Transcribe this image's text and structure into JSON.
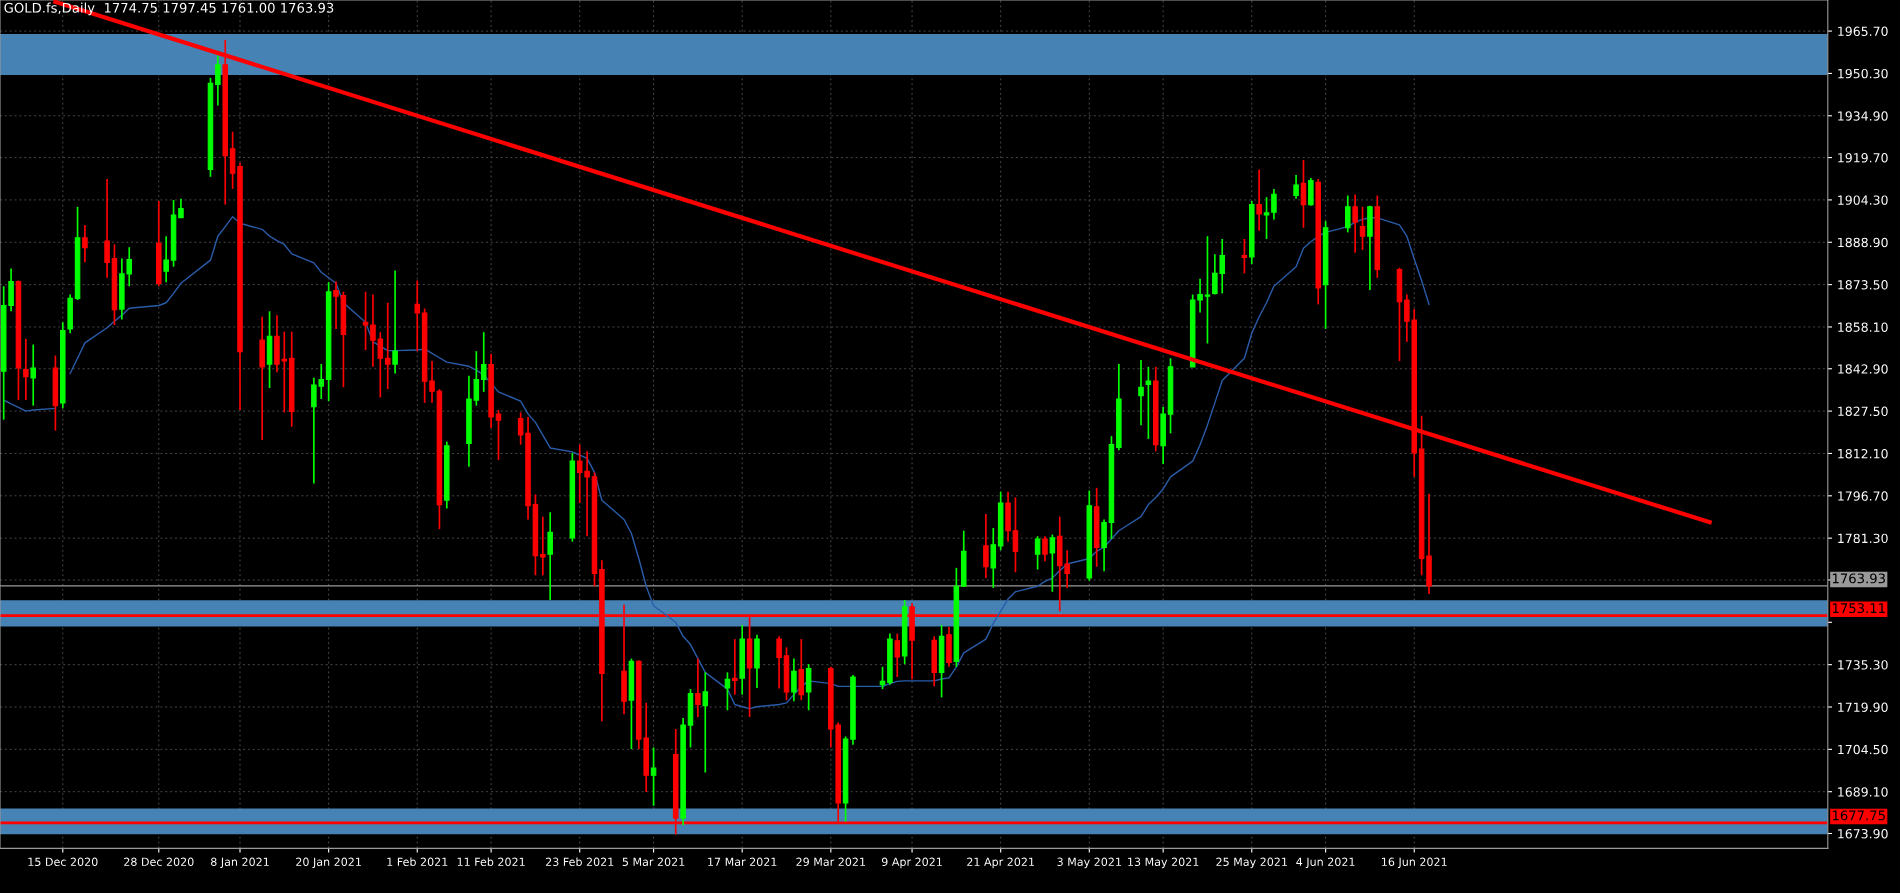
{
  "chart_data": {
    "type": "candlestick",
    "title": "GOLD.fs,Daily  1774.75 1797.45 1761.00 1763.93",
    "x": [
      "2020-12-07",
      "2020-12-08",
      "2020-12-09",
      "2020-12-10",
      "2020-12-11",
      "2020-12-14",
      "2020-12-15",
      "2020-12-16",
      "2020-12-17",
      "2020-12-18",
      "2020-12-21",
      "2020-12-22",
      "2020-12-23",
      "2020-12-24",
      "2020-12-28",
      "2020-12-29",
      "2020-12-30",
      "2020-12-31",
      "2021-01-04",
      "2021-01-05",
      "2021-01-06",
      "2021-01-07",
      "2021-01-08",
      "2021-01-11",
      "2021-01-12",
      "2021-01-13",
      "2021-01-14",
      "2021-01-15",
      "2021-01-18",
      "2021-01-19",
      "2021-01-20",
      "2021-01-21",
      "2021-01-22",
      "2021-01-25",
      "2021-01-26",
      "2021-01-27",
      "2021-01-28",
      "2021-01-29",
      "2021-02-01",
      "2021-02-02",
      "2021-02-03",
      "2021-02-04",
      "2021-02-05",
      "2021-02-08",
      "2021-02-09",
      "2021-02-10",
      "2021-02-11",
      "2021-02-12",
      "2021-02-15",
      "2021-02-16",
      "2021-02-17",
      "2021-02-18",
      "2021-02-19",
      "2021-02-22",
      "2021-02-23",
      "2021-02-24",
      "2021-02-25",
      "2021-02-26",
      "2021-03-01",
      "2021-03-02",
      "2021-03-03",
      "2021-03-04",
      "2021-03-05",
      "2021-03-08",
      "2021-03-09",
      "2021-03-10",
      "2021-03-11",
      "2021-03-12",
      "2021-03-15",
      "2021-03-16",
      "2021-03-17",
      "2021-03-18",
      "2021-03-19",
      "2021-03-22",
      "2021-03-23",
      "2021-03-24",
      "2021-03-25",
      "2021-03-26",
      "2021-03-29",
      "2021-03-30",
      "2021-03-31",
      "2021-04-01",
      "2021-04-05",
      "2021-04-06",
      "2021-04-07",
      "2021-04-08",
      "2021-04-09",
      "2021-04-12",
      "2021-04-13",
      "2021-04-14",
      "2021-04-15",
      "2021-04-16",
      "2021-04-19",
      "2021-04-20",
      "2021-04-21",
      "2021-04-22",
      "2021-04-23",
      "2021-04-26",
      "2021-04-27",
      "2021-04-28",
      "2021-04-29",
      "2021-04-30",
      "2021-05-03",
      "2021-05-04",
      "2021-05-05",
      "2021-05-06",
      "2021-05-07",
      "2021-05-10",
      "2021-05-11",
      "2021-05-12",
      "2021-05-13",
      "2021-05-14",
      "2021-05-17",
      "2021-05-18",
      "2021-05-19",
      "2021-05-20",
      "2021-05-21",
      "2021-05-24",
      "2021-05-25",
      "2021-05-26",
      "2021-05-27",
      "2021-05-28",
      "2021-05-31",
      "2021-06-01",
      "2021-06-02",
      "2021-06-03",
      "2021-06-04",
      "2021-06-07",
      "2021-06-08",
      "2021-06-09",
      "2021-06-10",
      "2021-06-11",
      "2021-06-14",
      "2021-06-15",
      "2021-06-16",
      "2021-06-17",
      "2021-06-18"
    ],
    "ohlc": [
      [
        1842.0,
        1872.9,
        1824.4,
        1865.9
      ],
      [
        1865.9,
        1879.4,
        1863.8,
        1874.6
      ],
      [
        1874.6,
        1875.0,
        1831.5,
        1843.2
      ],
      [
        1842.6,
        1853.7,
        1831.5,
        1840.0
      ],
      [
        1839.6,
        1851.7,
        1829.5,
        1843.2
      ],
      [
        1843.2,
        1847.7,
        1820.4,
        1829.5
      ],
      [
        1830.5,
        1859.8,
        1828.5,
        1856.8
      ],
      [
        1857.4,
        1869.9,
        1855.8,
        1868.5
      ],
      [
        1868.5,
        1901.8,
        1867.9,
        1890.5
      ],
      [
        1890.5,
        1895.2,
        1881.6,
        1886.9
      ],
      [
        1889.3,
        1911.9,
        1876.0,
        1881.6
      ],
      [
        1883.0,
        1888.1,
        1858.8,
        1864.4
      ],
      [
        1864.6,
        1883.0,
        1860.8,
        1877.4
      ],
      [
        1877.4,
        1887.1,
        1872.9,
        1882.6
      ],
      [
        1888.5,
        1903.9,
        1872.9,
        1873.9
      ],
      [
        1878.4,
        1891.1,
        1874.4,
        1882.4
      ],
      [
        1882.4,
        1904.3,
        1880.0,
        1898.8
      ],
      [
        1897.8,
        1904.7,
        1897.8,
        1901.2
      ],
      [
        1915.4,
        1948.7,
        1912.7,
        1946.7
      ],
      [
        1946.3,
        1956.8,
        1938.6,
        1953.4
      ],
      [
        1953.4,
        1962.5,
        1902.6,
        1920.4
      ],
      [
        1922.9,
        1929.1,
        1908.3,
        1914.0
      ],
      [
        1916.4,
        1917.8,
        1827.9,
        1849.1
      ],
      [
        1853.3,
        1861.8,
        1817.0,
        1843.6
      ],
      [
        1844.6,
        1863.8,
        1835.9,
        1854.7
      ],
      [
        1854.7,
        1862.4,
        1841.6,
        1844.6
      ],
      [
        1846.3,
        1856.4,
        1827.0,
        1845.7
      ],
      [
        1846.7,
        1856.4,
        1821.8,
        1827.4
      ],
      [
        1829.1,
        1839.6,
        1801.2,
        1837.0
      ],
      [
        1836.6,
        1844.6,
        1831.9,
        1839.0
      ],
      [
        1839.0,
        1874.4,
        1831.1,
        1870.9
      ],
      [
        1871.3,
        1874.6,
        1857.4,
        1869.3
      ],
      [
        1869.5,
        1870.9,
        1836.2,
        1855.4
      ],
      [
        1859.8,
        1870.9,
        1849.7,
        1858.8
      ],
      [
        1858.8,
        1869.9,
        1843.6,
        1853.3
      ],
      [
        1853.7,
        1856.2,
        1832.5,
        1846.7
      ],
      [
        1846.7,
        1866.9,
        1835.5,
        1844.6
      ],
      [
        1844.6,
        1878.6,
        1841.2,
        1849.3
      ],
      [
        1866.3,
        1875.0,
        1849.3,
        1863.2
      ],
      [
        1863.2,
        1864.8,
        1830.5,
        1838.4
      ],
      [
        1838.4,
        1845.7,
        1830.5,
        1834.7
      ],
      [
        1834.7,
        1835.5,
        1784.6,
        1793.5
      ],
      [
        1795.1,
        1816.4,
        1792.1,
        1814.9
      ],
      [
        1815.7,
        1840.4,
        1807.3,
        1831.9
      ],
      [
        1831.5,
        1849.3,
        1829.5,
        1839.0
      ],
      [
        1839.0,
        1856.2,
        1834.5,
        1844.4
      ],
      [
        1844.4,
        1848.3,
        1821.4,
        1825.4
      ],
      [
        1826.4,
        1827.9,
        1809.7,
        1824.2
      ],
      [
        1824.8,
        1827.0,
        1815.3,
        1818.8
      ],
      [
        1819.4,
        1825.4,
        1788.1,
        1793.1
      ],
      [
        1793.5,
        1797.2,
        1767.8,
        1774.9
      ],
      [
        1775.3,
        1789.1,
        1767.8,
        1774.5
      ],
      [
        1775.5,
        1790.7,
        1758.8,
        1783.4
      ],
      [
        1781.4,
        1812.3,
        1780.0,
        1809.3
      ],
      [
        1809.3,
        1815.3,
        1794.1,
        1805.2
      ],
      [
        1805.6,
        1812.9,
        1782.0,
        1803.6
      ],
      [
        1803.6,
        1805.2,
        1763.8,
        1768.5
      ],
      [
        1769.9,
        1773.3,
        1714.7,
        1732.1
      ],
      [
        1732.9,
        1757.1,
        1717.3,
        1722.0
      ],
      [
        1722.4,
        1737.5,
        1704.6,
        1736.5
      ],
      [
        1736.5,
        1736.9,
        1704.6,
        1708.2
      ],
      [
        1708.6,
        1721.4,
        1689.0,
        1695.1
      ],
      [
        1695.1,
        1705.2,
        1684.0,
        1697.7
      ],
      [
        1702.6,
        1711.9,
        1673.5,
        1679.5
      ],
      [
        1679.5,
        1715.9,
        1676.9,
        1713.3
      ],
      [
        1713.3,
        1726.4,
        1705.2,
        1724.8
      ],
      [
        1724.8,
        1737.5,
        1716.3,
        1720.8
      ],
      [
        1720.4,
        1732.5,
        1696.1,
        1725.4
      ],
      [
        1726.8,
        1732.5,
        1718.7,
        1730.0
      ],
      [
        1730.3,
        1744.6,
        1724.4,
        1729.6
      ],
      [
        1730.4,
        1749.7,
        1724.4,
        1744.6
      ],
      [
        1744.6,
        1753.1,
        1716.3,
        1734.1
      ],
      [
        1734.1,
        1746.2,
        1726.8,
        1744.6
      ],
      [
        1744.6,
        1745.6,
        1726.6,
        1737.9
      ],
      [
        1738.5,
        1741.6,
        1722.4,
        1725.4
      ],
      [
        1725.4,
        1737.5,
        1722.0,
        1732.9
      ],
      [
        1733.5,
        1744.6,
        1722.4,
        1724.4
      ],
      [
        1725.4,
        1735.5,
        1718.7,
        1733.9
      ],
      [
        1733.9,
        1734.5,
        1705.2,
        1711.9
      ],
      [
        1713.3,
        1714.3,
        1678.3,
        1685.0
      ],
      [
        1685.0,
        1709.2,
        1678.3,
        1708.2
      ],
      [
        1708.2,
        1731.5,
        1706.2,
        1730.8
      ],
      [
        1728.0,
        1734.5,
        1726.4,
        1729.2
      ],
      [
        1728.8,
        1746.6,
        1728.0,
        1744.6
      ],
      [
        1744.0,
        1746.6,
        1730.8,
        1738.1
      ],
      [
        1738.5,
        1758.8,
        1735.5,
        1756.3
      ],
      [
        1756.3,
        1757.7,
        1730.0,
        1744.2
      ],
      [
        1744.2,
        1745.6,
        1727.4,
        1732.5
      ],
      [
        1732.5,
        1749.7,
        1723.4,
        1745.6
      ],
      [
        1746.2,
        1749.0,
        1734.5,
        1736.1
      ],
      [
        1736.5,
        1770.5,
        1734.5,
        1763.8
      ],
      [
        1763.8,
        1784.0,
        1763.8,
        1776.5
      ],
      [
        1778.5,
        1790.1,
        1766.8,
        1770.9
      ],
      [
        1770.5,
        1785.0,
        1763.2,
        1778.9
      ],
      [
        1778.5,
        1798.2,
        1776.9,
        1794.1
      ],
      [
        1794.1,
        1798.2,
        1780.0,
        1784.0
      ],
      [
        1784.0,
        1796.1,
        1768.9,
        1776.5
      ],
      [
        1775.5,
        1782.0,
        1769.9,
        1781.0
      ],
      [
        1781.0,
        1782.0,
        1772.9,
        1775.5
      ],
      [
        1775.9,
        1782.6,
        1761.8,
        1781.4
      ],
      [
        1782.0,
        1789.1,
        1754.7,
        1771.3
      ],
      [
        1771.9,
        1776.9,
        1763.2,
        1768.5
      ],
      [
        1766.8,
        1798.6,
        1765.8,
        1793.1
      ],
      [
        1792.7,
        1799.6,
        1770.9,
        1777.9
      ],
      [
        1777.9,
        1788.1,
        1769.3,
        1787.0
      ],
      [
        1787.0,
        1818.4,
        1781.0,
        1815.3
      ],
      [
        1814.3,
        1844.6,
        1813.3,
        1831.9
      ],
      [
        1833.1,
        1846.1,
        1822.4,
        1836.2
      ],
      [
        1837.2,
        1843.6,
        1817.4,
        1838.4
      ],
      [
        1838.4,
        1843.6,
        1812.9,
        1815.3
      ],
      [
        1814.9,
        1829.1,
        1808.3,
        1826.4
      ],
      [
        1826.4,
        1846.7,
        1819.4,
        1843.6
      ],
      [
        1843.6,
        1869.9,
        1843.6,
        1867.9
      ],
      [
        1867.9,
        1875.6,
        1863.4,
        1869.9
      ],
      [
        1869.3,
        1891.1,
        1852.1,
        1869.7
      ],
      [
        1870.3,
        1884.5,
        1869.9,
        1877.6
      ],
      [
        1877.6,
        1890.1,
        1870.3,
        1884.1
      ],
      [
        1884.1,
        1890.1,
        1877.6,
        1883.4
      ],
      [
        1883.6,
        1903.9,
        1881.0,
        1902.6
      ],
      [
        1902.6,
        1915.4,
        1893.1,
        1899.2
      ],
      [
        1898.8,
        1905.3,
        1890.1,
        1899.6
      ],
      [
        1899.8,
        1908.3,
        1897.2,
        1906.3
      ],
      [
        1905.9,
        1913.4,
        1904.7,
        1909.7
      ],
      [
        1910.3,
        1918.8,
        1894.2,
        1902.6
      ],
      [
        1902.6,
        1912.3,
        1902.2,
        1911.3
      ],
      [
        1910.7,
        1911.9,
        1866.3,
        1872.3
      ],
      [
        1873.5,
        1896.6,
        1857.4,
        1894.2
      ],
      [
        1894.2,
        1905.9,
        1892.5,
        1901.8
      ],
      [
        1901.8,
        1906.3,
        1885.1,
        1896.2
      ],
      [
        1894.6,
        1901.8,
        1886.1,
        1891.1
      ],
      [
        1891.1,
        1902.2,
        1871.5,
        1901.8
      ],
      [
        1901.8,
        1905.9,
        1876.0,
        1879.0
      ],
      [
        1879.0,
        1879.6,
        1845.7,
        1867.3
      ],
      [
        1867.9,
        1869.9,
        1852.7,
        1860.2
      ],
      [
        1860.6,
        1864.6,
        1803.6,
        1812.3
      ],
      [
        1813.7,
        1825.8,
        1767.8,
        1773.9
      ],
      [
        1774.75,
        1797.45,
        1761.0,
        1763.93
      ]
    ],
    "colors": [
      "#00ff00",
      "#00ff00",
      "#ff0000",
      "#ff0000",
      "#00ff00",
      "#ff0000",
      "#00ff00",
      "#00ff00",
      "#00ff00",
      "#ff0000",
      "#ff0000",
      "#ff0000",
      "#00ff00",
      "#00ff00",
      "#ff0000",
      "#00ff00",
      "#00ff00",
      "#00ff00",
      "#00ff00",
      "#00ff00",
      "#ff0000",
      "#ff0000",
      "#ff0000",
      "#ff0000",
      "#00ff00",
      "#ff0000",
      "#ff0000",
      "#ff0000",
      "#00ff00",
      "#00ff00",
      "#00ff00",
      "#ff0000",
      "#ff0000",
      "#ff0000",
      "#ff0000",
      "#ff0000",
      "#ff0000",
      "#00ff00",
      "#ff0000",
      "#ff0000",
      "#ff0000",
      "#ff0000",
      "#00ff00",
      "#00ff00",
      "#00ff00",
      "#00ff00",
      "#ff0000",
      "#ff0000",
      "#ff0000",
      "#ff0000",
      "#ff0000",
      "#ff0000",
      "#00ff00",
      "#00ff00",
      "#ff0000",
      "#ff0000",
      "#ff0000",
      "#ff0000",
      "#ff0000",
      "#00ff00",
      "#ff0000",
      "#ff0000",
      "#00ff00",
      "#ff0000",
      "#00ff00",
      "#00ff00",
      "#ff0000",
      "#00ff00",
      "#00ff00",
      "#ff0000",
      "#00ff00",
      "#ff0000",
      "#00ff00",
      "#ff0000",
      "#ff0000",
      "#00ff00",
      "#ff0000",
      "#00ff00",
      "#ff0000",
      "#ff0000",
      "#00ff00",
      "#00ff00",
      "#00ff00",
      "#00ff00",
      "#ff0000",
      "#00ff00",
      "#ff0000",
      "#ff0000",
      "#00ff00",
      "#ff0000",
      "#00ff00",
      "#00ff00",
      "#ff0000",
      "#00ff00",
      "#00ff00",
      "#ff0000",
      "#ff0000",
      "#00ff00",
      "#ff0000",
      "#00ff00",
      "#ff0000",
      "#ff0000",
      "#00ff00",
      "#ff0000",
      "#00ff00",
      "#00ff00",
      "#00ff00",
      "#00ff00",
      "#00ff00",
      "#ff0000",
      "#00ff00",
      "#00ff00",
      "#00ff00",
      "#00ff00",
      "#00ff00",
      "#00ff00",
      "#00ff00",
      "#ff0000",
      "#00ff00",
      "#ff0000",
      "#00ff00",
      "#00ff00",
      "#00ff00",
      "#ff0000",
      "#00ff00",
      "#ff0000",
      "#00ff00",
      "#00ff00",
      "#ff0000",
      "#ff0000",
      "#00ff00",
      "#ff0000",
      "#ff0000",
      "#ff0000",
      "#ff0000",
      "#ff0000",
      "#ff0000"
    ],
    "series": [
      {
        "type": "line",
        "color": "#2a5caa",
        "values": [
          1831.5,
          1830.1,
          1828.9,
          1827.5,
          1827.9,
          1828.5,
          null,
          1841.2,
          1846.7,
          1852.3,
          1857.8,
          1860.2,
          1862.4,
          1864.9,
          1865.9,
          1866.9,
          1870.3,
          1874.0,
          1882.4,
          1891.1,
          1894.6,
          1898.2,
          1895.8,
          1893.6,
          1891.1,
          1889.5,
          1888.1,
          1884.7,
          1881.4,
          1878.0,
          1876.0,
          1874.0,
          1866.9,
          1859.8,
          1852.7,
          1851.1,
          1849.5,
          1849.5,
          1849.7,
          1850.1,
          1848.5,
          1846.9,
          1845.3,
          1843.8,
          1842.4,
          1840.6,
          1837.6,
          1834.5,
          1831.1,
          1826.5,
          1823.4,
          1818.8,
          1814.1,
          1812.7,
          1811.5,
          1810.3,
          1805.2,
          1795.1,
          1788.1,
          1783.0,
          1773.9,
          1763.8,
          1756.7,
          1750.7,
          1745.6,
          1742.6,
          1737.5,
          1732.5,
          1726.4,
          1720.8,
          1720.0,
          1719.3,
          1720.0,
          1720.8,
          1721.4,
          1724.4,
          1727.4,
          1729.4,
          1728.4,
          1727.4,
          1727.4,
          1727.4,
          1727.4,
          1728.4,
          1729.2,
          1729.4,
          1729.4,
          1729.4,
          1730.1,
          1730.5,
          1734.5,
          1739.6,
          1744.6,
          1750.3,
          1754.7,
          1759.2,
          1761.8,
          1763.8,
          1765.6,
          1766.8,
          1769.5,
          1771.9,
          1773.9,
          1776.5,
          1778.0,
          1781.0,
          1784.0,
          1789.1,
          1793.5,
          1796.1,
          1799.2,
          1803.6,
          1809.3,
          1815.3,
          1822.4,
          1830.5,
          1838.6,
          1846.7,
          1855.8,
          1861.8,
          1866.9,
          1872.9,
          1880.0,
          1886.7,
          1889.1,
          1891.1,
          1892.5,
          1894.6,
          1896.2,
          1897.2,
          1897.8,
          1897.8,
          1895.2,
          1891.1,
          1882.8,
          1875.0,
          1866.3
        ]
      },
      {
        "type": "line",
        "color": "#ff0000",
        "x": [
          "2020-12-14",
          "2021-07-26"
        ],
        "values": [
          1976.3,
          1787.1
        ]
      }
    ],
    "xlim": [
      "2020-12-06T12:00",
      "2021-08-11"
    ],
    "ylim": [
      1668.5,
      1977.0
    ],
    "xticks": [
      {
        "value": "2020-12-15",
        "label": "15 Dec 2020"
      },
      {
        "value": "2020-12-28",
        "label": "28 Dec 2020"
      },
      {
        "value": "2021-01-08",
        "label": "8 Jan 2021"
      },
      {
        "value": "2021-01-20",
        "label": "20 Jan 2021"
      },
      {
        "value": "2021-02-01",
        "label": "1 Feb 2021"
      },
      {
        "value": "2021-02-11",
        "label": "11 Feb 2021"
      },
      {
        "value": "2021-02-23",
        "label": "23 Feb 2021"
      },
      {
        "value": "2021-03-05",
        "label": "5 Mar 2021"
      },
      {
        "value": "2021-03-17",
        "label": "17 Mar 2021"
      },
      {
        "value": "2021-03-29",
        "label": "29 Mar 2021"
      },
      {
        "value": "2021-04-09",
        "label": "9 Apr 2021"
      },
      {
        "value": "2021-04-21",
        "label": "21 Apr 2021"
      },
      {
        "value": "2021-05-03",
        "label": "3 May 2021"
      },
      {
        "value": "2021-05-13",
        "label": "13 May 2021"
      },
      {
        "value": "2021-05-25",
        "label": "25 May 2021"
      },
      {
        "value": "2021-06-04",
        "label": "4 Jun 2021"
      },
      {
        "value": "2021-06-16",
        "label": "16 Jun 2021"
      }
    ],
    "yticks": [
      {
        "value": 1965.7,
        "label": "1965.70"
      },
      {
        "value": 1950.3,
        "label": "1950.30"
      },
      {
        "value": 1934.9,
        "label": "1934.90"
      },
      {
        "value": 1919.7,
        "label": "1919.70"
      },
      {
        "value": 1904.3,
        "label": "1904.30"
      },
      {
        "value": 1888.9,
        "label": "1888.90"
      },
      {
        "value": 1873.5,
        "label": "1873.50"
      },
      {
        "value": 1858.1,
        "label": "1858.10"
      },
      {
        "value": 1842.9,
        "label": "1842.90"
      },
      {
        "value": 1827.5,
        "label": "1827.50"
      },
      {
        "value": 1812.1,
        "label": "1812.10"
      },
      {
        "value": 1796.7,
        "label": "1796.70"
      },
      {
        "value": 1781.3,
        "label": "1781.30"
      },
      {
        "value": 1766.1,
        "label": null
      },
      {
        "value": 1750.7,
        "label": null
      },
      {
        "value": 1735.3,
        "label": "1735.30"
      },
      {
        "value": 1719.9,
        "label": "1719.90"
      },
      {
        "value": 1704.5,
        "label": "1704.50"
      },
      {
        "value": 1689.1,
        "label": "1689.10"
      },
      {
        "value": 1673.9,
        "label": "1673.90"
      }
    ],
    "bands": [
      {
        "axis": "y",
        "from": 1949.7,
        "to": 1964.6,
        "color": "#4682b4"
      },
      {
        "axis": "y",
        "from": 1749.2,
        "to": 1758.7,
        "color": "#4682b4"
      },
      {
        "axis": "y",
        "from": 1673.6,
        "to": 1683.0,
        "color": "#4682b4"
      }
    ],
    "ref_lines": [
      {
        "axis": "y",
        "value": 1763.93,
        "label": "1763.93",
        "color": "#9a9a9a"
      },
      {
        "axis": "y",
        "value": 1753.11,
        "label": "1753.11",
        "color": "#ff0000"
      },
      {
        "axis": "y",
        "value": 1677.75,
        "label": "1677.75",
        "color": "#ff0000"
      }
    ],
    "grid": true,
    "legend": false
  }
}
